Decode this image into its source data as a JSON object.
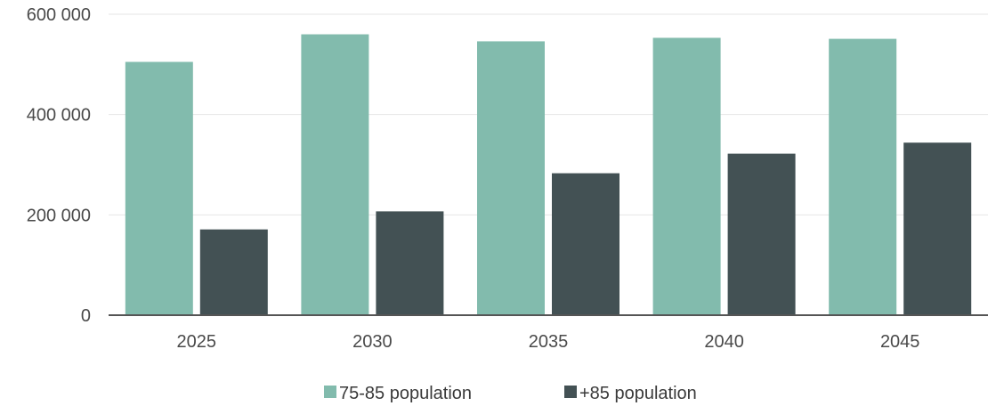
{
  "chart_data": {
    "type": "bar",
    "categories": [
      "2025",
      "2030",
      "2035",
      "2040",
      "2045"
    ],
    "series": [
      {
        "name": "75-85 population",
        "color": "#82bbad",
        "values": [
          505000,
          560000,
          546000,
          553000,
          551000
        ]
      },
      {
        "name": "+85 population",
        "color": "#435154",
        "values": [
          171000,
          207000,
          283000,
          322000,
          344000
        ]
      }
    ],
    "ylim": [
      0,
      600000
    ],
    "yticks": [
      0,
      200000,
      400000,
      600000
    ],
    "ytick_labels": [
      "0",
      "200 000",
      "400 000",
      "600 000"
    ],
    "grid": true,
    "legend_position": "bottom",
    "title": "",
    "xlabel": "",
    "ylabel": ""
  }
}
